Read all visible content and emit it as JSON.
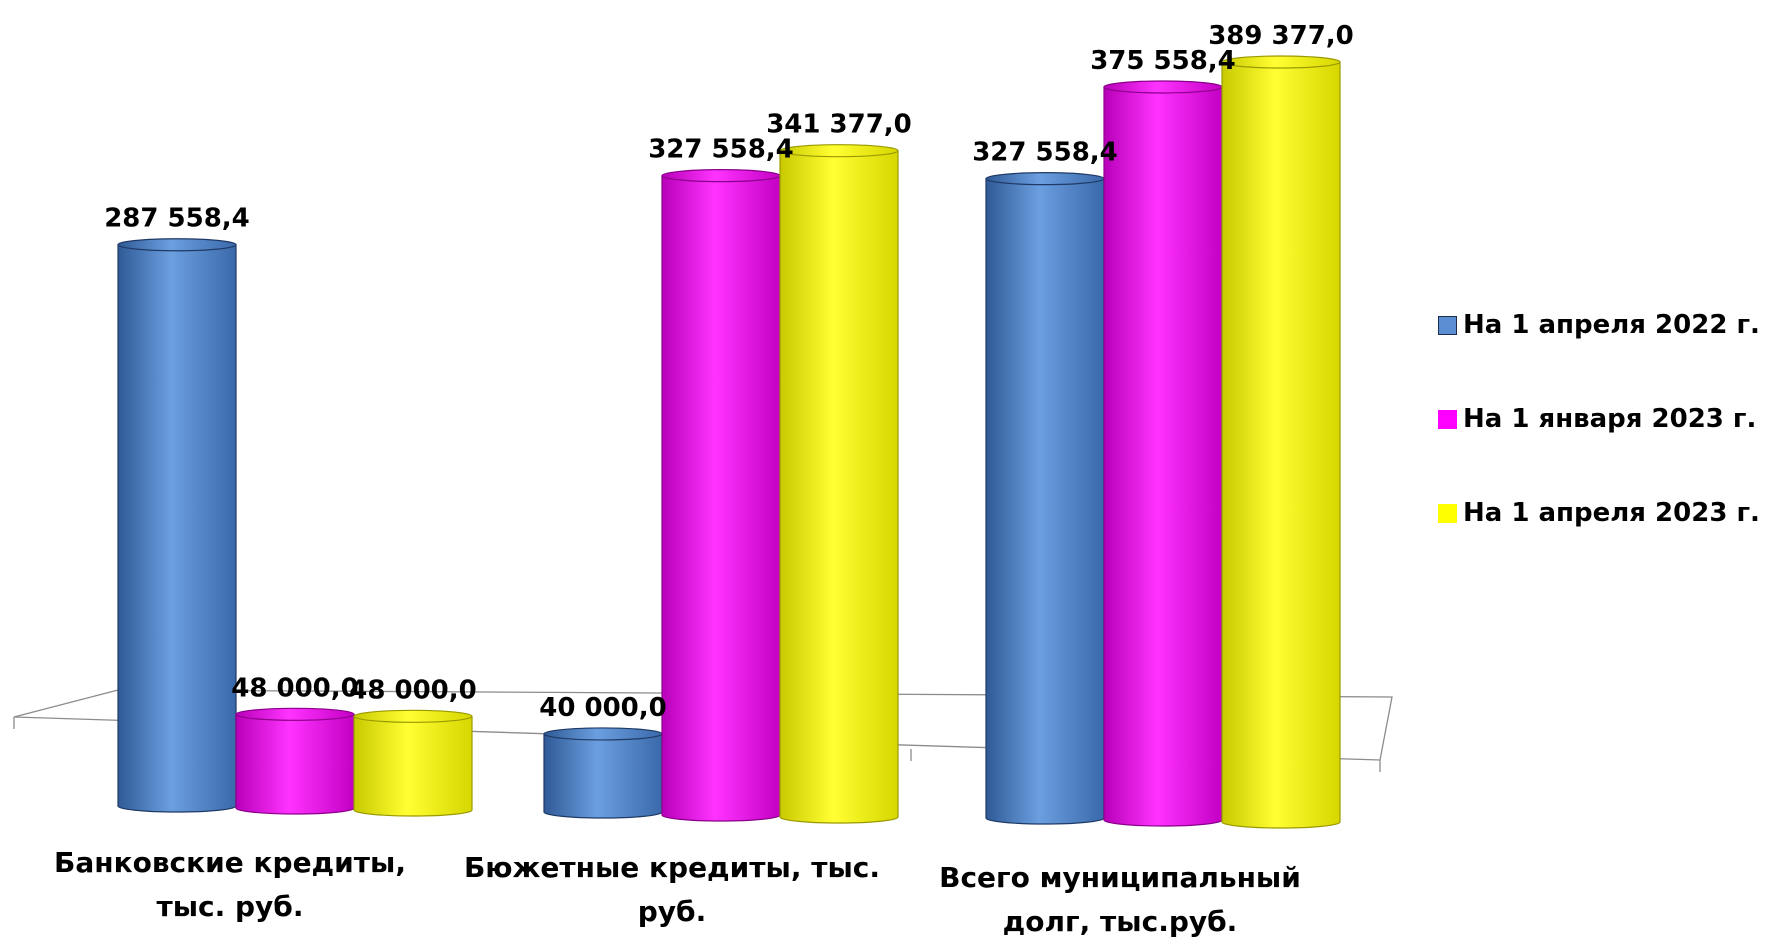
{
  "chart_data": {
    "type": "bar",
    "style": "3d-cylinder",
    "categories": [
      "Банковские кредиты, тыс. руб.",
      "Бюжетные кредиты, тыс. руб.",
      "Всего муниципальный долг, тыс.руб."
    ],
    "category_lines": [
      [
        "Банковские кредиты,",
        "тыс. руб."
      ],
      [
        "Бюжетные кредиты, тыс.",
        "руб."
      ],
      [
        "Всего муниципальный",
        "долг, тыс.руб."
      ]
    ],
    "series": [
      {
        "name": "На 1 апреля 2022 г.",
        "color": "#5b8fd4",
        "values": [
          287558.4,
          40000.0,
          327558.4
        ],
        "labels": [
          "287 558,4",
          "40 000,0",
          "327 558,4"
        ]
      },
      {
        "name": "На 1 января 2023 г.",
        "color": "#ff00ff",
        "values": [
          48000.0,
          327558.4,
          375558.4
        ],
        "labels": [
          "48 000,0",
          "327 558,4",
          "375 558,4"
        ]
      },
      {
        "name": "На 1 апреля 2023 г.",
        "color": "#ffff00",
        "values": [
          48000.0,
          341377.0,
          389377.0
        ],
        "labels": [
          "48 000,0",
          "341 377,0",
          "389 377,0"
        ]
      }
    ],
    "legend_position": "right",
    "grid": false
  }
}
